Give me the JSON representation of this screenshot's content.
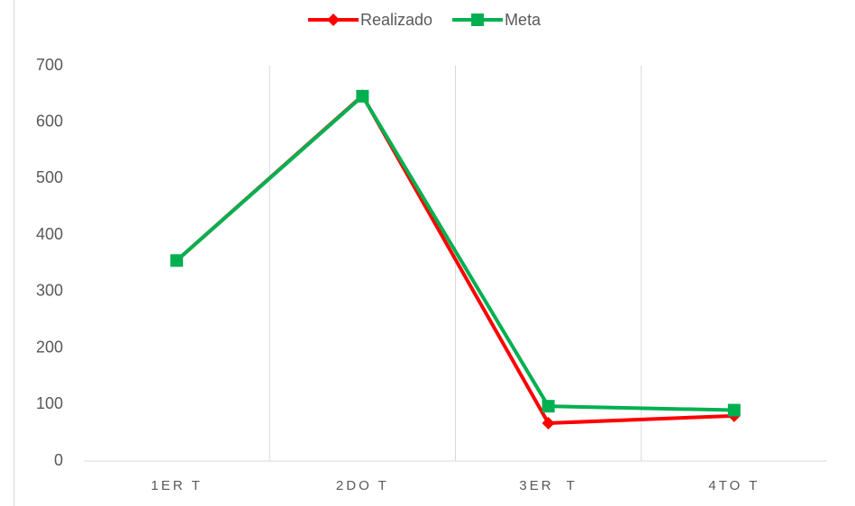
{
  "chart_data": {
    "type": "line",
    "categories": [
      "1ER T",
      "2DO T",
      "3ER  T",
      "4TO T"
    ],
    "series": [
      {
        "name": "Realizado",
        "color": "#ff0000",
        "marker": "diamond",
        "values": [
          355,
          647,
          67,
          80
        ]
      },
      {
        "name": "Meta",
        "color": "#00b050",
        "marker": "square",
        "values": [
          355,
          646,
          97,
          90
        ]
      }
    ],
    "ylim": [
      0,
      700
    ],
    "yticks": [
      0,
      100,
      200,
      300,
      400,
      500,
      600,
      700
    ],
    "xgrid": true,
    "legend": "top"
  }
}
